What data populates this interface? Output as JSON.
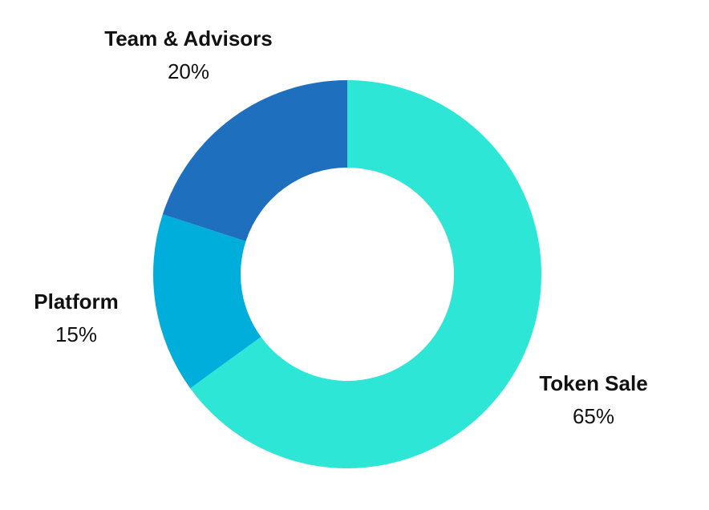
{
  "chart_data": {
    "type": "pie",
    "variant": "donut",
    "title": "",
    "start_angle": "top, clockwise",
    "slices": [
      {
        "label": "Token Sale",
        "value": 65,
        "display": "65%",
        "color": "#2de6d6"
      },
      {
        "label": "Platform",
        "value": 15,
        "display": "15%",
        "color": "#00aedc"
      },
      {
        "label": "Team & Advisors",
        "value": 20,
        "display": "20%",
        "color": "#1f6fbf"
      }
    ],
    "legend": "none (labels outside slices)"
  }
}
